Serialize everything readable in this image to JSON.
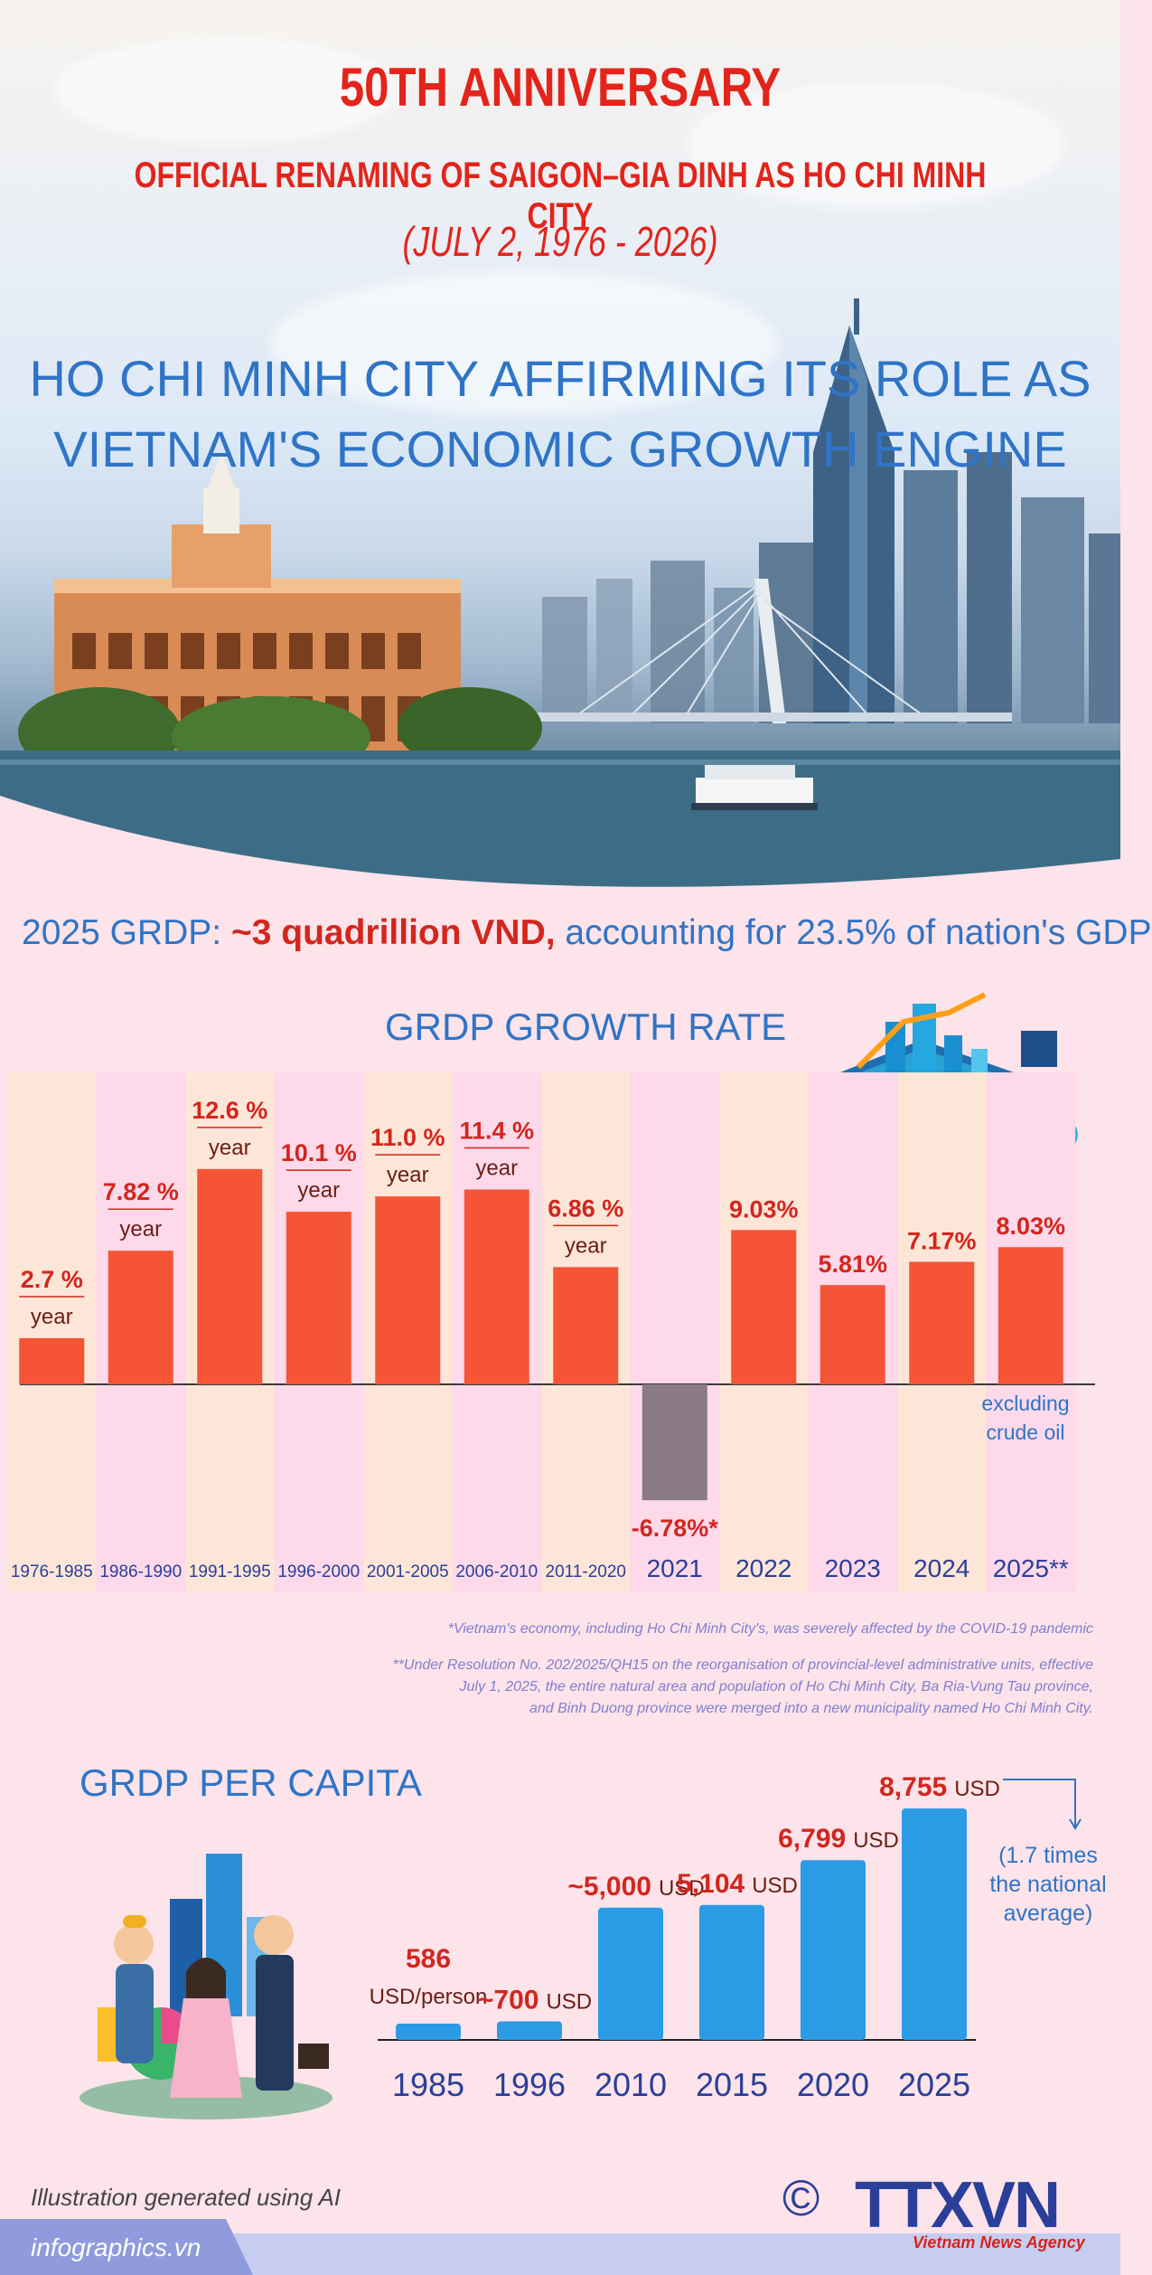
{
  "header": {
    "title": "50TH ANNIVERSARY",
    "subtitle": "OFFICIAL RENAMING OF SAIGON–GIA DINH AS HO CHI MINH CITY",
    "dates": "(JULY 2, 1976 - 2026)",
    "headline_line1": "HO CHI MINH CITY AFFIRMING ITS ROLE AS",
    "headline_line2": "VIETNAM'S ECONOMIC GROWTH ENGINE"
  },
  "grdp": {
    "prefix": "2025 GRDP: ",
    "value": "~3 quadrillion VND,",
    "suffix": " accounting for 23.5% of nation's GDP"
  },
  "chart_data": [
    {
      "type": "bar",
      "title": "GRDP GROWTH RATE",
      "unit": "%",
      "categories": [
        "1976-1985",
        "1986-1990",
        "1991-1995",
        "1996-2000",
        "2001-2005",
        "2006-2010",
        "2011-2020",
        "2021",
        "2022",
        "2023",
        "2024",
        "2025**"
      ],
      "values": [
        2.7,
        7.82,
        12.6,
        10.1,
        11.0,
        11.4,
        6.86,
        -6.78,
        9.03,
        5.81,
        7.17,
        8.03
      ],
      "value_labels": [
        "2.7 %",
        "7.82 %",
        "12.6 %",
        "10.1 %",
        "11.0 %",
        "11.4 %",
        "6.86 %",
        "-6.78%*",
        "9.03%",
        "5.81%",
        "7.17%",
        "8.03%"
      ],
      "period_suffix": [
        "year",
        "year",
        "year",
        "year",
        "year",
        "year",
        "year",
        "",
        "",
        "",
        "",
        ""
      ],
      "annotation": "excluding crude oil",
      "colors": {
        "positive": "#f65436",
        "negative": "#8a7a86",
        "label": "#d3261d",
        "axis_label": "#2a3f9a"
      }
    },
    {
      "type": "bar",
      "title": "GRDP PER CAPITA",
      "unit": "USD",
      "categories": [
        "1985",
        "1996",
        "2010",
        "2015",
        "2020",
        "2025"
      ],
      "values": [
        586,
        700,
        5000,
        5104,
        6799,
        8755
      ],
      "value_labels": [
        "586",
        "~700",
        "~5,000",
        "5,104",
        "6,799",
        "8,755"
      ],
      "unit_labels": [
        "USD/person",
        "USD",
        "USD",
        "USD",
        "USD",
        "USD"
      ],
      "annotation": "(1.7 times the national average)",
      "colors": {
        "bar": "#2b9be6",
        "label": "#d3261d",
        "axis_label": "#2a3f9a"
      }
    }
  ],
  "notes": {
    "covid": "*Vietnam's economy, including Ho Chi Minh City's, was severely affected by the COVID-19 pandemic",
    "resolution_1": "**Under Resolution No. 202/2025/QH15 on the reorganisation of provincial-level administrative units, effective",
    "resolution_2": "July 1, 2025, the entire natural area and population of Ho Chi Minh City, Ba Ria-Vung Tau province,",
    "resolution_3": "and Binh Duong province were merged into a new municipality named Ho Chi Minh City."
  },
  "footer": {
    "credit": "Illustration generated using AI",
    "site": "infographics.vn",
    "copyright": "©",
    "logo": "TTXVN",
    "logo_sub": "Vietnam News Agency"
  }
}
